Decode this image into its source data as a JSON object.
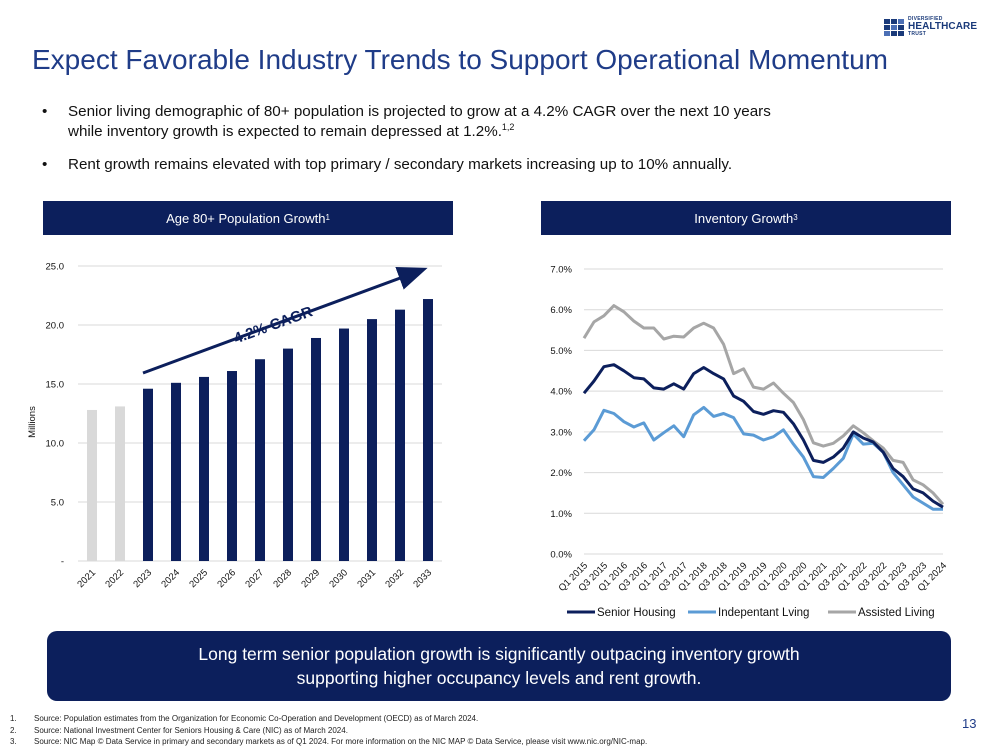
{
  "logo": {
    "line1": "DIVERSIFIED",
    "line2": "HEALTHCARE",
    "line3": "TRUST"
  },
  "title": "Expect Favorable Industry Trends to Support Operational Momentum",
  "bullets": [
    {
      "text1": "Senior living demographic of 80+ population is projected to grow at a 4.2% CAGR over the next 10 years",
      "text2": "while inventory growth is expected to remain depressed at 1.2%.",
      "sup": "1,2"
    },
    {
      "text1": "Rent growth remains elevated with top primary / secondary markets increasing up to 10% annually."
    }
  ],
  "left_panel": {
    "title": "Age 80+ Population Growth",
    "sup": "1"
  },
  "right_panel": {
    "title": "Inventory Growth",
    "sup": "3"
  },
  "colors": {
    "navy": "#0c1f5c",
    "bar_dark": "#0c1f5c",
    "bar_light": "#d9d9d9",
    "senior": "#0c1f5c",
    "independent": "#5b9bd5",
    "assisted": "#a6a6a6"
  },
  "chart_data": [
    {
      "type": "bar",
      "ylabel": "Millions",
      "ylim": [
        0,
        25
      ],
      "yticks": [
        "-",
        "5.0",
        "10.0",
        "15.0",
        "20.0",
        "25.0"
      ],
      "categories": [
        "2021",
        "2022",
        "2023",
        "2024",
        "2025",
        "2026",
        "2027",
        "2028",
        "2029",
        "2030",
        "2031",
        "2032",
        "2033"
      ],
      "values": [
        12.8,
        13.1,
        14.6,
        15.1,
        15.6,
        16.1,
        17.1,
        18.0,
        18.9,
        19.7,
        20.5,
        21.3,
        22.2
      ],
      "historical_count": 2,
      "annotation": "4.2% CAGR",
      "grid": true
    },
    {
      "type": "line",
      "ylim": [
        0,
        7
      ],
      "yticks": [
        "0.0%",
        "1.0%",
        "2.0%",
        "3.0%",
        "4.0%",
        "5.0%",
        "6.0%",
        "7.0%"
      ],
      "x": [
        "Q1 2015",
        "Q2 2015",
        "Q3 2015",
        "Q4 2015",
        "Q1 2016",
        "Q2 2016",
        "Q3 2016",
        "Q4 2016",
        "Q1 2017",
        "Q2 2017",
        "Q3 2017",
        "Q4 2017",
        "Q1 2018",
        "Q2 2018",
        "Q3 2018",
        "Q4 2018",
        "Q1 2019",
        "Q2 2019",
        "Q3 2019",
        "Q4 2019",
        "Q1 2020",
        "Q2 2020",
        "Q3 2020",
        "Q4 2020",
        "Q1 2021",
        "Q2 2021",
        "Q3 2021",
        "Q4 2021",
        "Q1 2022",
        "Q2 2022",
        "Q3 2022",
        "Q4 2022",
        "Q1 2023",
        "Q2 2023",
        "Q3 2023",
        "Q4 2023",
        "Q1 2024"
      ],
      "xtick_labels": [
        "Q1 2015",
        "Q3 2015",
        "Q1 2016",
        "Q3 2016",
        "Q1 2017",
        "Q3 2017",
        "Q1 2018",
        "Q3 2018",
        "Q1 2019",
        "Q3 2019",
        "Q1 2020",
        "Q3 2020",
        "Q1 2021",
        "Q3 2021",
        "Q1 2022",
        "Q3 2022",
        "Q1 2023",
        "Q3 2023",
        "Q1 2024"
      ],
      "series": [
        {
          "name": "Senior Housing",
          "values": [
            3.95,
            4.25,
            4.6,
            4.65,
            4.5,
            4.33,
            4.3,
            4.08,
            4.05,
            4.18,
            4.05,
            4.43,
            4.58,
            4.43,
            4.3,
            3.88,
            3.75,
            3.5,
            3.43,
            3.52,
            3.48,
            3.2,
            2.8,
            2.3,
            2.25,
            2.38,
            2.6,
            3.0,
            2.85,
            2.75,
            2.5,
            2.1,
            1.9,
            1.6,
            1.5,
            1.3,
            1.15
          ]
        },
        {
          "name": "Indepentant Lving",
          "values": [
            2.78,
            3.05,
            3.53,
            3.45,
            3.25,
            3.12,
            3.22,
            2.8,
            2.98,
            3.15,
            2.88,
            3.42,
            3.6,
            3.38,
            3.45,
            3.35,
            2.95,
            2.92,
            2.8,
            2.88,
            3.05,
            2.7,
            2.38,
            1.9,
            1.88,
            2.1,
            2.35,
            2.95,
            2.7,
            2.72,
            2.5,
            2.0,
            1.7,
            1.4,
            1.25,
            1.1,
            1.1
          ]
        },
        {
          "name": "Assisted Living",
          "values": [
            5.3,
            5.7,
            5.85,
            6.1,
            5.95,
            5.72,
            5.55,
            5.55,
            5.28,
            5.35,
            5.33,
            5.55,
            5.67,
            5.55,
            5.15,
            4.43,
            4.55,
            4.1,
            4.05,
            4.2,
            3.95,
            3.72,
            3.3,
            2.73,
            2.65,
            2.72,
            2.9,
            3.15,
            2.98,
            2.78,
            2.6,
            2.3,
            2.25,
            1.82,
            1.7,
            1.5,
            1.22
          ]
        }
      ],
      "legend": "bottom",
      "grid": true
    }
  ],
  "callout": {
    "line1": "Long term senior population growth is significantly outpacing inventory growth",
    "line2": "supporting higher occupancy levels and rent growth."
  },
  "footnotes": [
    {
      "n": "1.",
      "text": "Source: Population estimates from the Organization for Economic Co-Operation and Development (OECD) as of March 2024."
    },
    {
      "n": "2.",
      "text": "Source: National Investment Center for Seniors Housing & Care (NIC) as of March 2024."
    },
    {
      "n": "3.",
      "text": "Source: NIC Map © Data Service in primary and secondary markets as of Q1 2024.  For more information on the NIC MAP © Data Service, please visit www.nic.org/NIC-map."
    }
  ],
  "page_number": "13"
}
